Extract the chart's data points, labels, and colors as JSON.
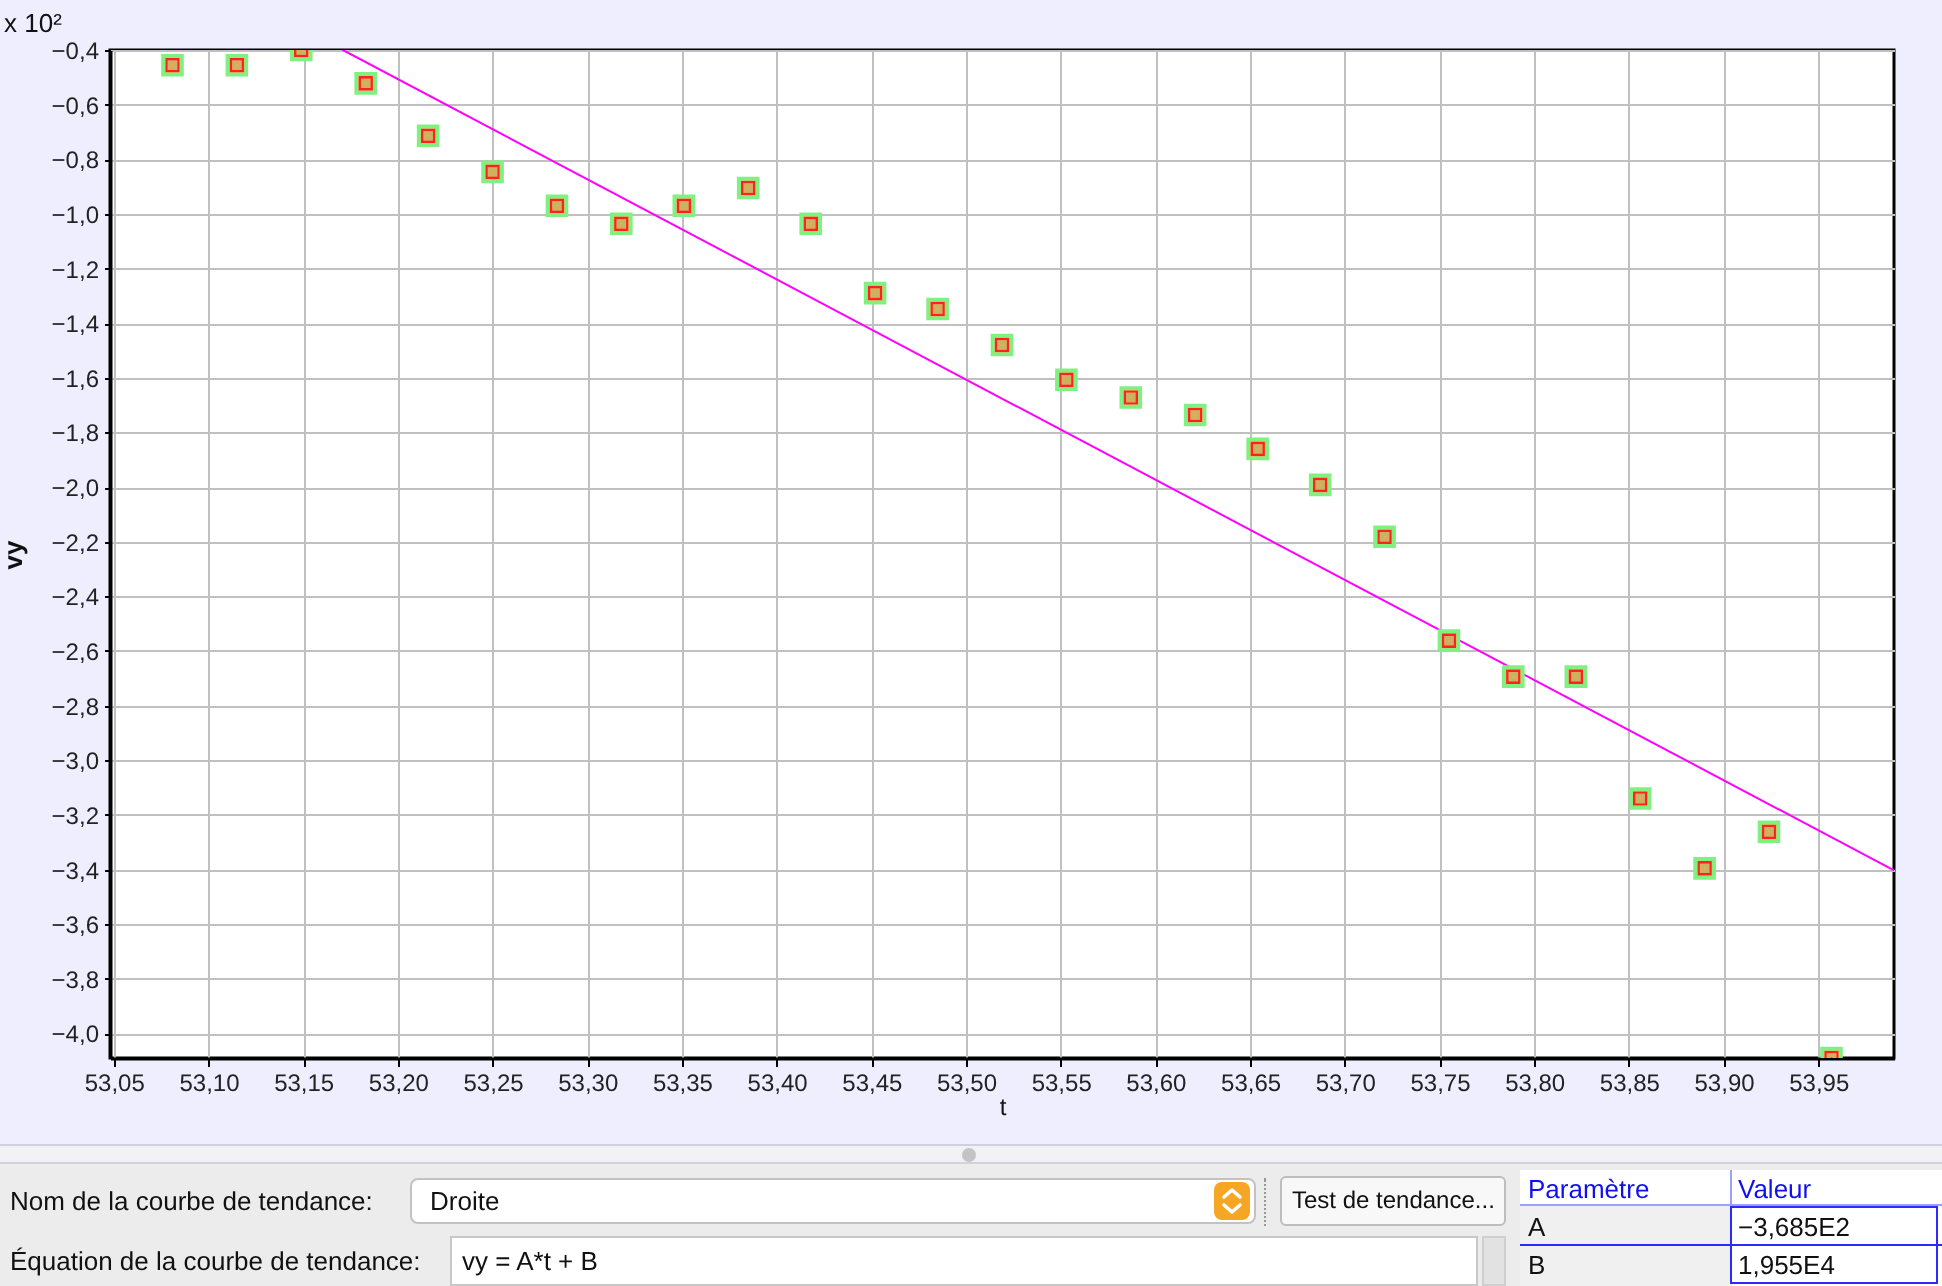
{
  "chart_data": {
    "type": "scatter",
    "xlabel": "t",
    "ylabel": "vy",
    "xlim": [
      53.048,
      53.99
    ],
    "ylim": [
      -4.09,
      -0.4
    ],
    "xticks": [
      {
        "value": 53.05,
        "label": "53,05"
      },
      {
        "value": 53.1,
        "label": "53,10"
      },
      {
        "value": 53.15,
        "label": "53,15"
      },
      {
        "value": 53.2,
        "label": "53,20"
      },
      {
        "value": 53.25,
        "label": "53,25"
      },
      {
        "value": 53.3,
        "label": "53,30"
      },
      {
        "value": 53.35,
        "label": "53,35"
      },
      {
        "value": 53.4,
        "label": "53,40"
      },
      {
        "value": 53.45,
        "label": "53,45"
      },
      {
        "value": 53.5,
        "label": "53,50"
      },
      {
        "value": 53.55,
        "label": "53,55"
      },
      {
        "value": 53.6,
        "label": "53,60"
      },
      {
        "value": 53.65,
        "label": "53,65"
      },
      {
        "value": 53.7,
        "label": "53,70"
      },
      {
        "value": 53.75,
        "label": "53,75"
      },
      {
        "value": 53.8,
        "label": "53,80"
      },
      {
        "value": 53.85,
        "label": "53,85"
      },
      {
        "value": 53.9,
        "label": "53,90"
      },
      {
        "value": 53.95,
        "label": "53,95"
      }
    ],
    "yticks": [
      {
        "value": -0.4,
        "label": "−0,4"
      },
      {
        "value": -0.6,
        "label": "−0,6"
      },
      {
        "value": -0.8,
        "label": "−0,8"
      },
      {
        "value": -1.0,
        "label": "−1,0"
      },
      {
        "value": -1.2,
        "label": "−1,2"
      },
      {
        "value": -1.4,
        "label": "−1,4"
      },
      {
        "value": -1.6,
        "label": "−1,6"
      },
      {
        "value": -1.8,
        "label": "−1,8"
      },
      {
        "value": -2.0,
        "label": "−2,0"
      },
      {
        "value": -2.2,
        "label": "−2,2"
      },
      {
        "value": -2.4,
        "label": "−2,4"
      },
      {
        "value": -2.6,
        "label": "−2,6"
      },
      {
        "value": -2.8,
        "label": "−2,8"
      },
      {
        "value": -3.0,
        "label": "−3,0"
      },
      {
        "value": -3.2,
        "label": "−3,2"
      },
      {
        "value": -3.4,
        "label": "−3,4"
      },
      {
        "value": -3.6,
        "label": "−3,6"
      },
      {
        "value": -3.8,
        "label": "−3,8"
      },
      {
        "value": -4.0,
        "label": "−4,0"
      }
    ],
    "series": [
      {
        "color": "#ff2020",
        "marker": "square",
        "x": [
          53.081,
          53.115,
          53.149,
          53.183,
          53.216,
          53.25,
          53.284,
          53.318,
          53.351,
          53.385,
          53.418,
          53.452,
          53.485,
          53.519,
          53.553,
          53.587,
          53.621,
          53.654,
          53.687,
          53.721,
          53.755,
          53.789,
          53.822,
          53.856,
          53.89,
          53.924,
          53.957
        ],
        "values": [
          -0.456,
          -0.456,
          -0.4,
          -0.522,
          -0.714,
          -0.846,
          -0.97,
          -1.036,
          -0.97,
          -0.905,
          -1.036,
          -1.29,
          -1.348,
          -1.48,
          -1.607,
          -1.672,
          -1.736,
          -1.86,
          -1.992,
          -2.182,
          -2.562,
          -2.694,
          -2.694,
          -3.14,
          -3.396,
          -3.262,
          -4.09
        ]
      },
      {
        "type": "line",
        "color": "#ff00ff",
        "line_style": "solid",
        "x": [
          53.171,
          53.99
        ],
        "values": [
          -0.4,
          -3.403
        ]
      }
    ],
    "grid": true,
    "annotations": [
      "x 10²",
      "Nom de la courbe de tendance:",
      "Droite",
      "Test de tendance...",
      "Paramètre",
      "Valeur",
      "A",
      "−3,685E2",
      "B",
      "1,955E4",
      "Équation de la courbe de tendance:",
      "vy = A*t + B"
    ]
  }
}
